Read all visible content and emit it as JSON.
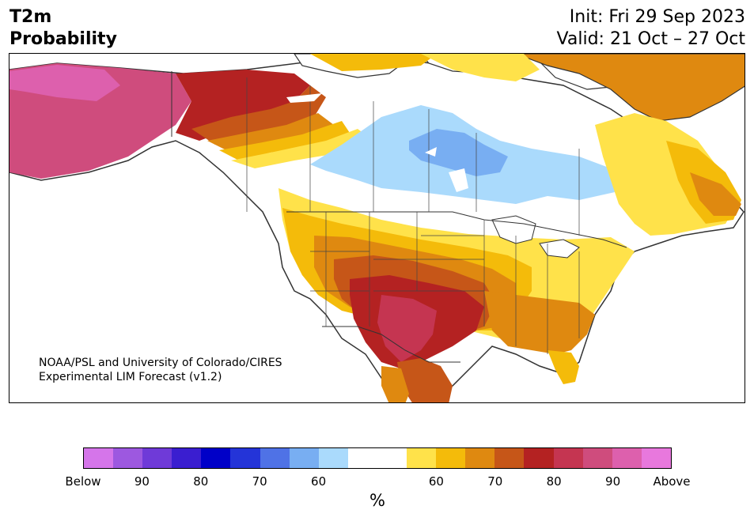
{
  "title": {
    "line1": "T2m",
    "line2": "Probability"
  },
  "init": "Init: Fri 29 Sep 2023",
  "valid": "Valid: 21 Oct – 27 Oct",
  "credit": {
    "line1": "NOAA/PSL and University of Colorado/CIRES",
    "line2": "Experimental LIM Forecast (v1.2)"
  },
  "colorbar": {
    "colors": [
      "#d575ea",
      "#9d58e0",
      "#6f3ad8",
      "#3a1ed0",
      "#0000c8",
      "#2434d8",
      "#4f72e6",
      "#78aef2",
      "#aadafc",
      "#ffffff",
      "#ffffff",
      "#ffe24a",
      "#f4bb0a",
      "#df8910",
      "#c65618",
      "#b42222",
      "#c53551",
      "#cf4c7d",
      "#dd60ad",
      "#e878dd"
    ],
    "ticks": [
      {
        "label": "Below",
        "index": 0
      },
      {
        "label": "90",
        "index": 2
      },
      {
        "label": "80",
        "index": 4
      },
      {
        "label": "70",
        "index": 6
      },
      {
        "label": "60",
        "index": 8
      },
      {
        "label": "60",
        "index": 12
      },
      {
        "label": "70",
        "index": 14
      },
      {
        "label": "80",
        "index": 16
      },
      {
        "label": "90",
        "index": 18
      },
      {
        "label": "Above",
        "index": 20
      }
    ],
    "unit": "%"
  },
  "map": {
    "region": "North America",
    "colors": {
      "above_90": "#cf4c7d",
      "above_80": "#b42222",
      "above_70": "#c65618",
      "above_65": "#df8910",
      "above_60": "#f4bb0a",
      "above_55": "#ffe24a",
      "near_normal": "#ffffff",
      "below_55": "#aadafc",
      "below_60": "#78aef2",
      "coast": "#333333"
    }
  }
}
